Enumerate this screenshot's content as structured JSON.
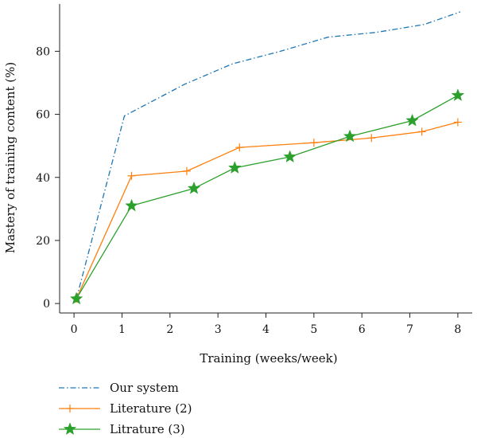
{
  "chart_data": {
    "type": "line",
    "xlabel": "Training (weeks/week)",
    "ylabel": "Mastery of training content (%)",
    "xlim": [
      -0.3,
      8.3
    ],
    "ylim": [
      -3,
      95
    ],
    "xticks": [
      0,
      1,
      2,
      3,
      4,
      5,
      6,
      7,
      8
    ],
    "yticks": [
      0,
      20,
      40,
      60,
      80
    ],
    "grid": false,
    "legend_position": "bottom-left, below plot",
    "series": [
      {
        "name": "Our system",
        "color": "#1f77b4",
        "line_style": "dash-dot",
        "marker": "none",
        "x": [
          0.05,
          1.05,
          2.3,
          3.3,
          4.3,
          5.3,
          6.3,
          7.3,
          8.05
        ],
        "y": [
          1.5,
          59.5,
          69.5,
          76,
          80,
          84.5,
          86,
          88.5,
          92.5
        ]
      },
      {
        "name": "Literature (2)",
        "color": "#ff7f0e",
        "line_style": "solid",
        "marker": "plus",
        "x": [
          0.05,
          1.2,
          2.35,
          3.45,
          5.0,
          6.2,
          7.25,
          8.0
        ],
        "y": [
          1.5,
          40.5,
          42,
          49.5,
          51,
          52.5,
          54.5,
          57.5
        ]
      },
      {
        "name": "Litrature (3)",
        "color": "#2ca02c",
        "line_style": "solid",
        "marker": "star",
        "x": [
          0.05,
          1.2,
          2.5,
          3.35,
          4.5,
          5.75,
          7.05,
          8.0
        ],
        "y": [
          1.5,
          31,
          36.5,
          43,
          46.5,
          53,
          58,
          66
        ]
      }
    ]
  }
}
